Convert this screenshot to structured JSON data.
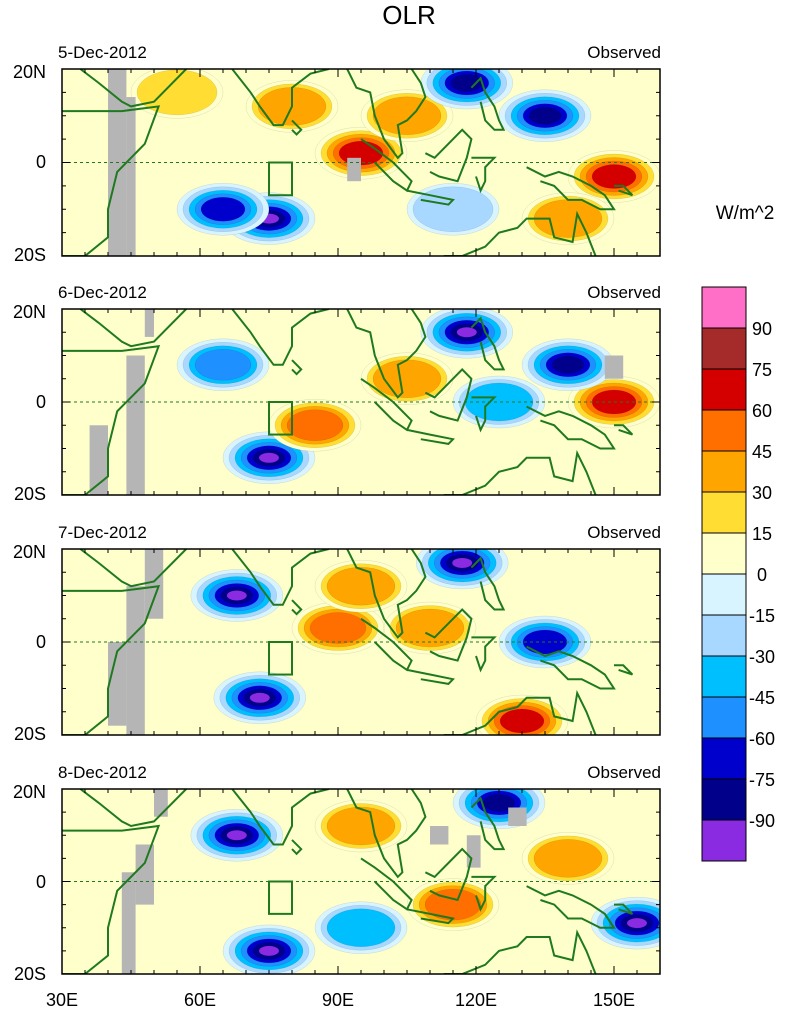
{
  "chart_data": {
    "type": "heatmap",
    "title": "OLR",
    "units": "W/m^2",
    "colorbar": {
      "labels": [
        "90",
        "75",
        "60",
        "45",
        "30",
        "15",
        "0",
        "-15",
        "-30",
        "-45",
        "-60",
        "-75",
        "-90"
      ],
      "colors": [
        "#ff6ec7",
        "#a52a2a",
        "#d40000",
        "#ff6f00",
        "#ffa500",
        "#ffdd33",
        "#ffffcc",
        "#d8f4ff",
        "#a8d8ff",
        "#00bfff",
        "#1e90ff",
        "#0000cd",
        "#00008b",
        "#8a2be2"
      ]
    },
    "x_ticks": [
      "30E",
      "60E",
      "90E",
      "120E",
      "150E"
    ],
    "x_tick_values": [
      30,
      60,
      90,
      120,
      150
    ],
    "xlim": [
      30,
      160
    ],
    "y_ticks": [
      "20N",
      "0",
      "20S"
    ],
    "y_tick_values": [
      20,
      0,
      -20
    ],
    "ylim": [
      -20,
      20
    ],
    "panels": [
      {
        "date": "5-Dec-2012",
        "label": "Observed",
        "cells": [
          {
            "lon": 95,
            "lat": 2,
            "v": 65
          },
          {
            "lon": 150,
            "lat": -3,
            "v": 60
          },
          {
            "lon": 105,
            "lat": 10,
            "v": 40
          },
          {
            "lon": 75,
            "lat": -12,
            "v": -95
          },
          {
            "lon": 65,
            "lat": -10,
            "v": -70
          },
          {
            "lon": 118,
            "lat": 17,
            "v": -85
          },
          {
            "lon": 135,
            "lat": 10,
            "v": -75
          },
          {
            "lon": 80,
            "lat": 12,
            "v": 35
          },
          {
            "lon": 55,
            "lat": 15,
            "v": 25
          },
          {
            "lon": 140,
            "lat": -12,
            "v": 30
          },
          {
            "lon": 115,
            "lat": -10,
            "v": -20
          }
        ]
      },
      {
        "date": "6-Dec-2012",
        "label": "Observed",
        "cells": [
          {
            "lon": 75,
            "lat": -12,
            "v": -95
          },
          {
            "lon": 85,
            "lat": -5,
            "v": 45
          },
          {
            "lon": 150,
            "lat": 0,
            "v": 60
          },
          {
            "lon": 118,
            "lat": 15,
            "v": -90
          },
          {
            "lon": 65,
            "lat": 8,
            "v": -45
          },
          {
            "lon": 140,
            "lat": 8,
            "v": -75
          },
          {
            "lon": 105,
            "lat": 5,
            "v": 40
          },
          {
            "lon": 125,
            "lat": 0,
            "v": -30
          }
        ]
      },
      {
        "date": "7-Dec-2012",
        "label": "Observed",
        "cells": [
          {
            "lon": 68,
            "lat": 10,
            "v": -95
          },
          {
            "lon": 73,
            "lat": -12,
            "v": -95
          },
          {
            "lon": 117,
            "lat": 17,
            "v": -95
          },
          {
            "lon": 90,
            "lat": 3,
            "v": 55
          },
          {
            "lon": 130,
            "lat": -17,
            "v": 60
          },
          {
            "lon": 110,
            "lat": 3,
            "v": 40
          },
          {
            "lon": 135,
            "lat": 0,
            "v": -60
          },
          {
            "lon": 95,
            "lat": 12,
            "v": 30
          }
        ]
      },
      {
        "date": "8-Dec-2012",
        "label": "Observed",
        "cells": [
          {
            "lon": 75,
            "lat": -15,
            "v": -95
          },
          {
            "lon": 68,
            "lat": 10,
            "v": -90
          },
          {
            "lon": 155,
            "lat": -9,
            "v": -95
          },
          {
            "lon": 95,
            "lat": 12,
            "v": 35
          },
          {
            "lon": 125,
            "lat": 17,
            "v": -80
          },
          {
            "lon": 115,
            "lat": -5,
            "v": 45
          },
          {
            "lon": 95,
            "lat": -10,
            "v": -40
          },
          {
            "lon": 140,
            "lat": 5,
            "v": 30
          }
        ]
      }
    ]
  }
}
